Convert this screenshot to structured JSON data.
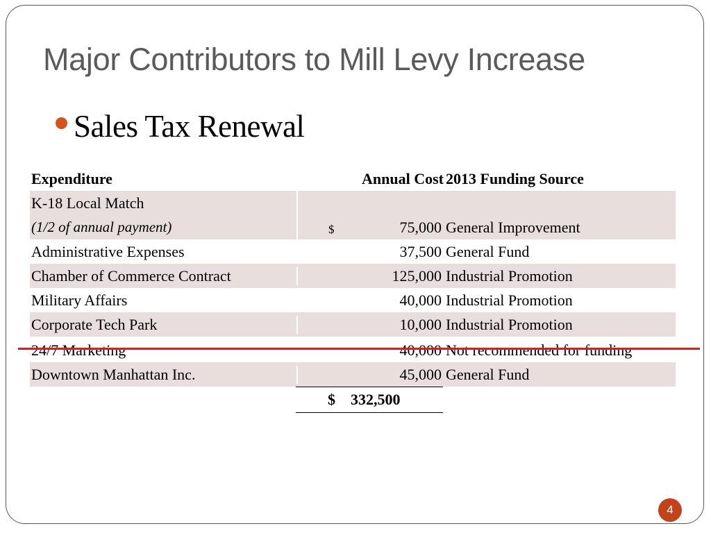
{
  "slide": {
    "title": "Major Contributors to Mill Levy Increase",
    "bullet": "Sales Tax Renewal",
    "page_number": "4",
    "accent_color": "#d35419",
    "strike_color": "#e01b1b",
    "row_shade_color": "#e8dede"
  },
  "table": {
    "headers": {
      "expenditure": "Expenditure",
      "annual_cost": "Annual Cost",
      "funding_source": "2013 Funding Source"
    },
    "rows": [
      {
        "expenditure": "K-18 Local Match",
        "note": "(1/2 of annual payment)",
        "currency": "$",
        "cost": "75,000",
        "source": "General Improvement"
      },
      {
        "expenditure": "Administrative Expenses",
        "currency": "",
        "cost": "37,500",
        "source": "General Fund"
      },
      {
        "expenditure": "Chamber of Commerce Contract",
        "currency": "",
        "cost": "125,000",
        "source": "Industrial Promotion"
      },
      {
        "expenditure": "Military Affairs",
        "currency": "",
        "cost": "40,000",
        "source": "Industrial Promotion"
      },
      {
        "expenditure": "Corporate Tech Park",
        "currency": "",
        "cost": "10,000",
        "source": "Industrial Promotion"
      },
      {
        "expenditure": "24/7 Marketing",
        "currency": "",
        "cost": "40,000",
        "source": "Not recommended for funding",
        "struck": true
      },
      {
        "expenditure": "Downtown Manhattan Inc.",
        "currency": "",
        "cost": "45,000",
        "source": "General Fund"
      }
    ],
    "total": {
      "currency": "$",
      "value": "332,500"
    }
  }
}
